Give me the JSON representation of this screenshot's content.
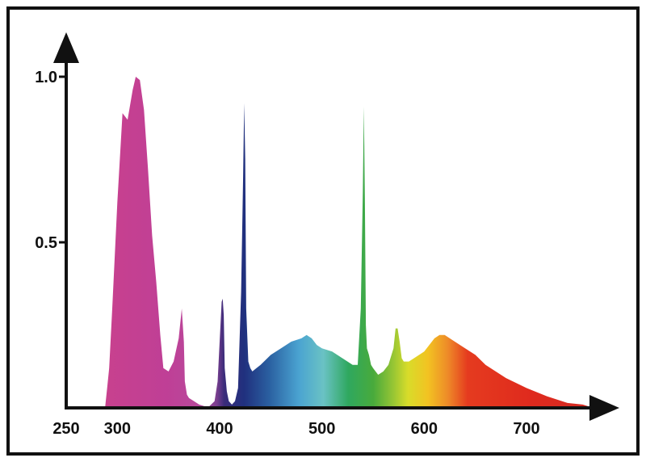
{
  "chart_data": {
    "type": "area",
    "title": "",
    "xlabel": "",
    "ylabel": "",
    "xlim": [
      250,
      775
    ],
    "ylim": [
      0,
      1.0
    ],
    "grid": false,
    "legend": "none",
    "x_ticks": [
      {
        "value": 250,
        "label": "250"
      },
      {
        "value": 300,
        "label": "300"
      },
      {
        "value": 400,
        "label": "400"
      },
      {
        "value": 500,
        "label": "500"
      },
      {
        "value": 600,
        "label": "600"
      },
      {
        "value": 700,
        "label": "700"
      }
    ],
    "y_ticks": [
      {
        "value": 0.5,
        "label": "0.5"
      },
      {
        "value": 1.0,
        "label": "1.0"
      }
    ],
    "fill": "wavelength spectrum gradient (violet to red)",
    "series": [
      {
        "x": [
          288,
          290,
          292,
          295,
          300,
          305,
          310,
          315,
          318,
          322,
          326,
          330,
          334,
          338,
          342,
          345,
          350,
          355,
          360,
          363,
          365,
          366,
          368,
          370,
          375,
          380,
          385,
          390,
          395,
          398,
          400,
          402,
          403,
          404,
          405,
          407,
          409,
          412,
          415,
          418,
          421,
          423,
          424,
          425,
          426,
          428,
          430,
          432,
          436,
          440,
          450,
          460,
          470,
          480,
          485,
          490,
          495,
          500,
          510,
          520,
          530,
          535,
          538,
          540,
          541,
          542,
          543,
          544,
          546,
          548,
          550,
          555,
          560,
          565,
          570,
          572,
          574,
          576,
          578,
          580,
          585,
          590,
          600,
          610,
          615,
          620,
          630,
          640,
          650,
          660,
          680,
          700,
          720,
          740,
          755,
          760,
          765
        ],
        "y": [
          0.0,
          0.06,
          0.12,
          0.3,
          0.62,
          0.89,
          0.87,
          0.96,
          1.0,
          0.99,
          0.9,
          0.72,
          0.52,
          0.38,
          0.22,
          0.12,
          0.11,
          0.14,
          0.21,
          0.3,
          0.2,
          0.08,
          0.04,
          0.03,
          0.02,
          0.01,
          0.005,
          0.005,
          0.02,
          0.08,
          0.2,
          0.32,
          0.33,
          0.28,
          0.12,
          0.05,
          0.02,
          0.01,
          0.02,
          0.06,
          0.35,
          0.7,
          0.92,
          0.75,
          0.3,
          0.14,
          0.12,
          0.11,
          0.12,
          0.13,
          0.16,
          0.18,
          0.2,
          0.21,
          0.22,
          0.21,
          0.19,
          0.18,
          0.17,
          0.15,
          0.13,
          0.13,
          0.3,
          0.65,
          0.91,
          0.62,
          0.25,
          0.18,
          0.16,
          0.13,
          0.12,
          0.1,
          0.11,
          0.13,
          0.18,
          0.24,
          0.24,
          0.2,
          0.15,
          0.14,
          0.14,
          0.15,
          0.17,
          0.21,
          0.22,
          0.22,
          0.2,
          0.18,
          0.16,
          0.13,
          0.09,
          0.06,
          0.035,
          0.015,
          0.01,
          0.005,
          0.0
        ]
      }
    ]
  }
}
